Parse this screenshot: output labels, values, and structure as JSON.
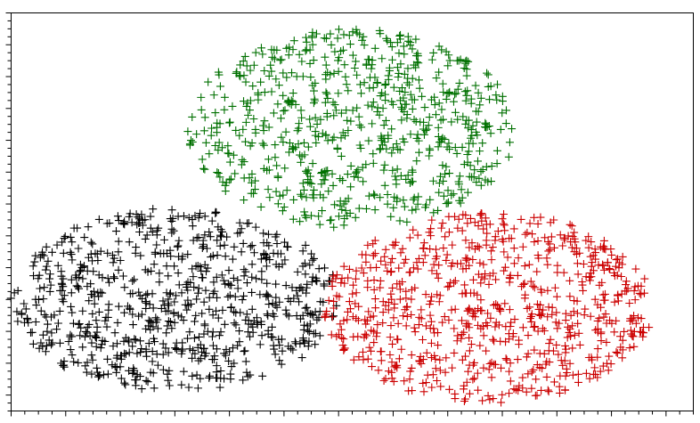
{
  "chart_data": {
    "type": "scatter",
    "marker": "plus",
    "title": "",
    "xlabel": "",
    "ylabel": "",
    "grid": false,
    "legend": "none",
    "tick_labels": false,
    "xlim": [
      0,
      100
    ],
    "ylim": [
      0,
      100
    ],
    "x_minor_ticks": 50,
    "y_minor_ticks": 50,
    "series": [
      {
        "color": "#000000",
        "cluster": {
          "center": [
            24,
            28
          ],
          "radius": [
            23,
            23
          ],
          "count": 760
        }
      },
      {
        "color": "#cc0000",
        "cluster": {
          "center": [
            70,
            26
          ],
          "radius": [
            23,
            24
          ],
          "count": 760
        }
      },
      {
        "color": "#007000",
        "cluster": {
          "center": [
            50,
            71
          ],
          "radius": [
            23,
            25
          ],
          "count": 700
        }
      }
    ]
  }
}
